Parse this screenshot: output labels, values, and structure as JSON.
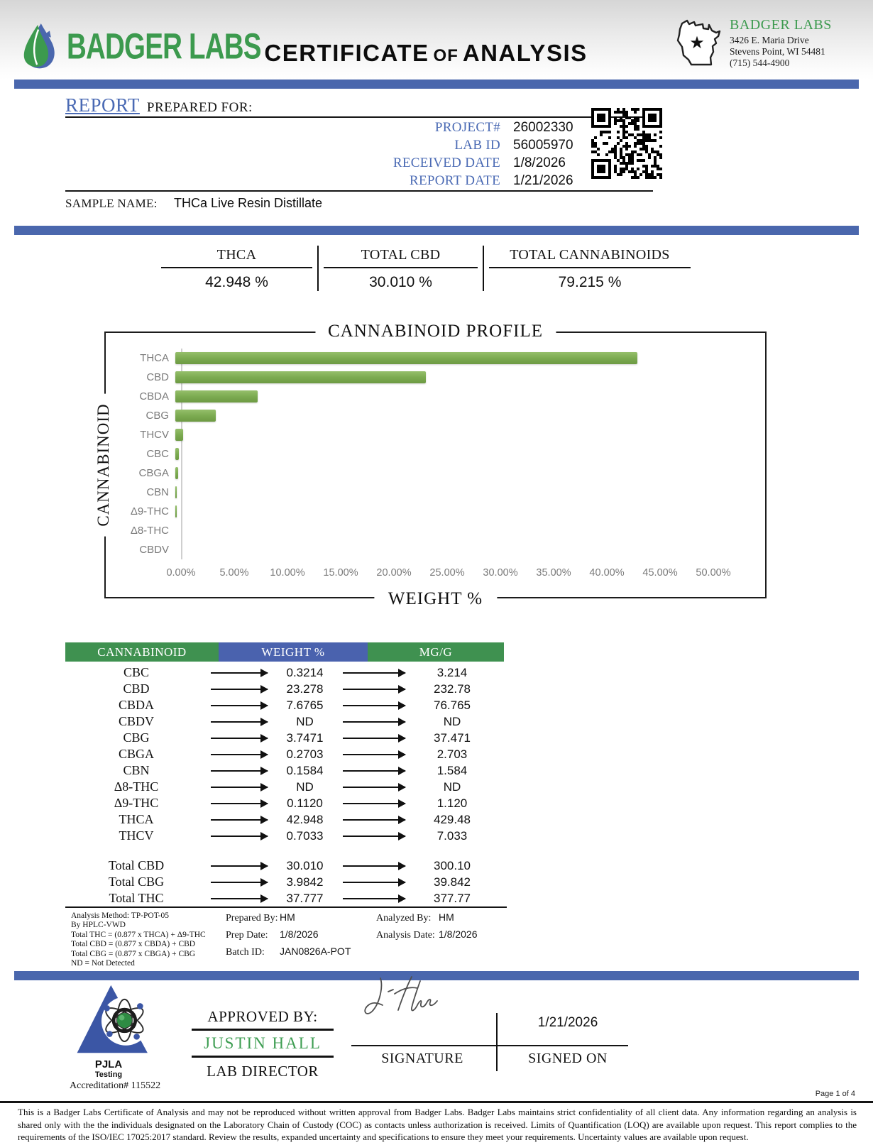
{
  "header": {
    "logo_text": "BADGER LABS",
    "title_part1": "CERTIFICATE",
    "title_of": "OF",
    "title_part2": "ANALYSIS",
    "lab_info": {
      "name": "BADGER LABS",
      "address_line1": "3426 E. Maria Drive",
      "address_line2": "Stevens Point, WI 54481",
      "phone": "(715) 544-4900"
    }
  },
  "report": {
    "section_title": "REPORT",
    "section_subtitle": "PREPARED FOR:",
    "fields": [
      {
        "label": "PROJECT#",
        "value": "26002330"
      },
      {
        "label": "LAB ID",
        "value": "56005970"
      },
      {
        "label": "RECEIVED DATE",
        "value": "1/8/2026"
      },
      {
        "label": "REPORT DATE",
        "value": "1/21/2026"
      }
    ],
    "sample_name_label": "SAMPLE NAME:",
    "sample_name": "THCa Live Resin Distillate"
  },
  "summary": {
    "columns": [
      {
        "label": "THCA",
        "value": "42.948 %"
      },
      {
        "label": "TOTAL CBD",
        "value": "30.010 %"
      },
      {
        "label": "TOTAL CANNABINOIDS",
        "value": "79.215 %"
      }
    ]
  },
  "chart_data": {
    "type": "bar",
    "orientation": "horizontal",
    "title": "CANNABINOID PROFILE",
    "ylabel": "CANNABINOID",
    "xlabel": "WEIGHT %",
    "categories": [
      "THCA",
      "CBD",
      "CBDA",
      "CBG",
      "THCV",
      "CBC",
      "CBGA",
      "CBN",
      "Δ9-THC",
      "Δ8-THC",
      "CBDV"
    ],
    "values": [
      42.948,
      23.278,
      7.6765,
      3.7471,
      0.7033,
      0.3214,
      0.2703,
      0.1584,
      0.112,
      0,
      0
    ],
    "xlim": [
      0,
      50
    ],
    "x_ticks": [
      "0.00%",
      "5.00%",
      "10.00%",
      "15.00%",
      "20.00%",
      "25.00%",
      "30.00%",
      "35.00%",
      "40.00%",
      "45.00%",
      "50.00%"
    ],
    "bar_color": "#7cab51",
    "grid": false,
    "legend": false
  },
  "table": {
    "headers": [
      "CANNABINOID",
      "WEIGHT %",
      "MG/G"
    ],
    "header_colors": [
      "#3f9150",
      "#4a62ae",
      "#3f9150"
    ],
    "rows": [
      [
        "CBC",
        "0.3214",
        "3.214"
      ],
      [
        "CBD",
        "23.278",
        "232.78"
      ],
      [
        "CBDA",
        "7.6765",
        "76.765"
      ],
      [
        "CBDV",
        "ND",
        "ND"
      ],
      [
        "CBG",
        "3.7471",
        "37.471"
      ],
      [
        "CBGA",
        "0.2703",
        "2.703"
      ],
      [
        "CBN",
        "0.1584",
        "1.584"
      ],
      [
        "Δ8-THC",
        "ND",
        "ND"
      ],
      [
        "Δ9-THC",
        "0.1120",
        "1.120"
      ],
      [
        "THCA",
        "42.948",
        "429.48"
      ],
      [
        "THCV",
        "0.7033",
        "7.033"
      ]
    ],
    "totals": [
      [
        "Total CBD",
        "30.010",
        "300.10"
      ],
      [
        "Total CBG",
        "3.9842",
        "39.842"
      ],
      [
        "Total THC",
        "37.777",
        "377.77"
      ]
    ]
  },
  "notes": {
    "method_lines": [
      "Analysis Method: TP-POT-05",
      "By HPLC-VWD",
      "Total THC = (0.877 x  THCA) + Δ9-THC",
      "Total CBD = (0.877 x  CBDA) + CBD",
      "Total CBG = (0.877 x  CBGA) + CBG",
      "ND = Not Detected"
    ],
    "prepared_by_label": "Prepared By:",
    "prepared_by": "HM",
    "prep_date_label": "Prep Date:",
    "prep_date": "1/8/2026",
    "batch_id_label": "Batch ID:",
    "batch_id": "JAN0826A-POT",
    "analyzed_by_label": "Analyzed By:",
    "analyzed_by": "HM",
    "analysis_date_label": "Analysis Date:",
    "analysis_date": "1/8/2026"
  },
  "approval": {
    "accreditation_org": "PJLA",
    "accreditation_sub": "Testing",
    "accreditation_number": "Accreditation# 115522",
    "approved_by_label": "APPROVED BY:",
    "approver_name": "JUSTIN HALL",
    "approver_title": "LAB DIRECTOR",
    "signature_label": "SIGNATURE",
    "signed_date": "1/21/2026",
    "signed_on_label": "SIGNED ON"
  },
  "footer": {
    "page_label": "Page 1 of 4",
    "disclaimer": "This is a Badger Labs Certificate of Analysis and may not be reproduced without written approval from Badger Labs. Badger Labs maintains strict confidentiality of all client data. Any information regarding an analysis is shared only with the the individuals designated on the Laboratory Chain of Custody (COC) as contacts unless authorization is received. Limits of Quantification (LOQ) are available upon request. This report complies to the requirements of the ISO/IEC 17025:2017 standard. Review the results, expanded uncertainty and specifications to ensure they meet your requirements. Uncertainty values are available upon request."
  },
  "colors": {
    "accent_blue": "#4a67ad",
    "table_blue": "#4a62ae",
    "accent_green": "#3f9150",
    "label_blue": "#4a6ab4",
    "brand_green": "#3c9a4e",
    "bar_green": "#7cab51"
  }
}
